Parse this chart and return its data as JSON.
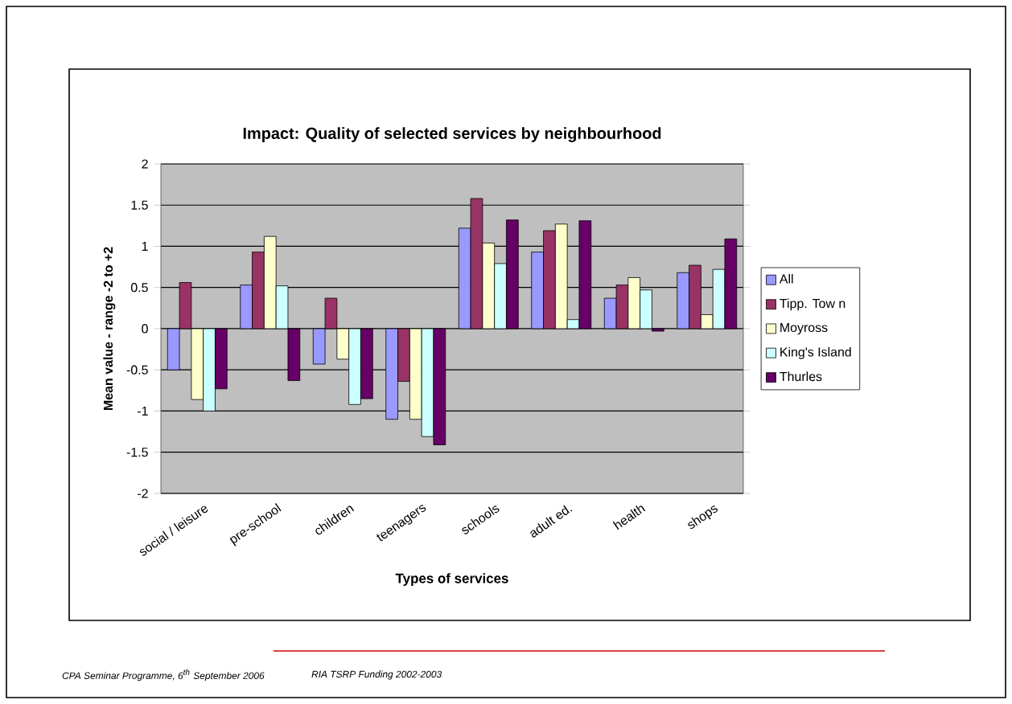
{
  "chart_data": {
    "type": "bar",
    "title": "Impact: Quality of selected services by neighbourhood",
    "xlabel": "Types of services",
    "ylabel": "Mean value - range -2 to +2",
    "categories": [
      "social / leisure",
      "pre-school",
      "children",
      "teenagers",
      "schools",
      "adult ed.",
      "health",
      "shops"
    ],
    "series": [
      {
        "name": "All",
        "color": "#9999ff",
        "values": [
          -0.5,
          0.53,
          -0.43,
          -1.1,
          1.22,
          0.93,
          0.37,
          0.68
        ]
      },
      {
        "name": "Tipp. Tow n",
        "color": "#993366",
        "values": [
          0.56,
          0.93,
          0.37,
          -0.64,
          1.58,
          1.19,
          0.53,
          0.77
        ]
      },
      {
        "name": "Moyross",
        "color": "#ffffcc",
        "values": [
          -0.86,
          1.12,
          -0.37,
          -1.1,
          1.04,
          1.27,
          0.62,
          0.17
        ]
      },
      {
        "name": "King's Island",
        "color": "#ccffff",
        "values": [
          -1.0,
          0.52,
          -0.92,
          -1.31,
          0.79,
          0.11,
          0.47,
          0.72
        ]
      },
      {
        "name": "Thurles",
        "color": "#660066",
        "values": [
          -0.73,
          -0.63,
          -0.85,
          -1.41,
          1.32,
          1.31,
          -0.03,
          1.09
        ]
      }
    ],
    "ylim": [
      -2,
      2
    ],
    "yticks": [
      -2,
      -1.5,
      -1,
      -0.5,
      0,
      0.5,
      1,
      1.5,
      2
    ],
    "grid": "y",
    "legend": "right",
    "annotations": [
      "CPA Seminar Programme, 6$^{th}$ September 2006",
      "RIA TSRP Funding 2002-2003"
    ]
  }
}
